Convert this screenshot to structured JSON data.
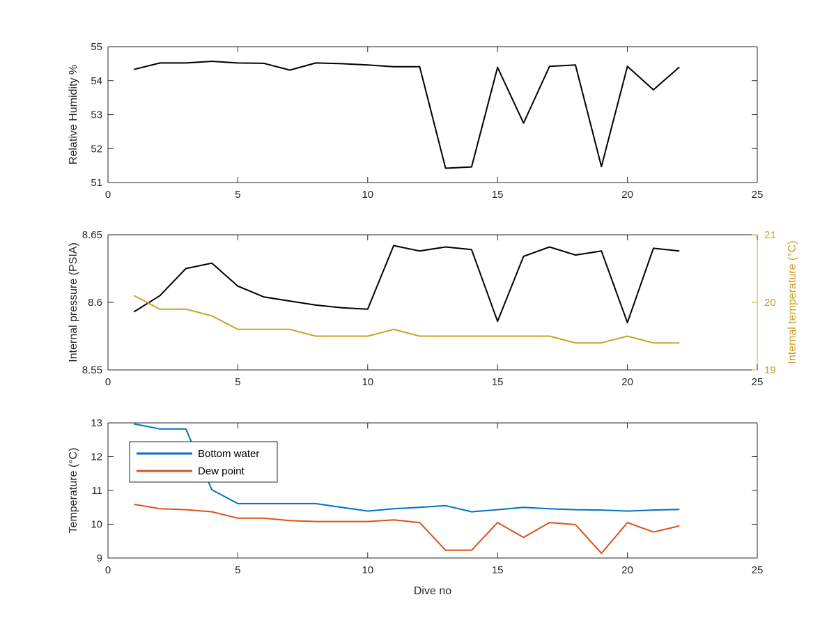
{
  "chart_data": [
    {
      "type": "line",
      "xlim": [
        0,
        25
      ],
      "ylim": [
        51,
        55
      ],
      "xticks": [
        0,
        5,
        10,
        15,
        20,
        25
      ],
      "yticks": [
        51,
        52,
        53,
        54,
        55
      ],
      "xlabel": "",
      "ylabel": "Relative Humidity %",
      "grid": false,
      "series": [
        {
          "color": "#000000",
          "x": [
            1,
            2,
            3,
            4,
            5,
            6,
            7,
            8,
            9,
            10,
            11,
            12,
            13,
            14,
            15,
            16,
            17,
            18,
            19,
            20,
            21,
            22
          ],
          "y": [
            54.33,
            54.52,
            54.52,
            54.57,
            54.52,
            54.51,
            54.31,
            54.52,
            54.5,
            54.46,
            54.41,
            54.41,
            51.42,
            51.46,
            54.39,
            52.75,
            54.42,
            54.46,
            51.47,
            54.42,
            53.73,
            54.4
          ]
        }
      ]
    },
    {
      "type": "line",
      "xlim": [
        0,
        25
      ],
      "ylim": [
        8.55,
        8.65
      ],
      "ylim_right": [
        19,
        21
      ],
      "xticks": [
        0,
        5,
        10,
        15,
        20,
        25
      ],
      "yticks": [
        8.55,
        8.6,
        8.65
      ],
      "yticks_right": [
        19,
        20,
        21
      ],
      "xlabel": "",
      "ylabel": "Internal pressure (PSIA)",
      "ylabel_right": "Internal temperature (°C)",
      "right_axis_color": "#C9A227",
      "grid": false,
      "series": [
        {
          "axis": "left",
          "color": "#000000",
          "x": [
            1,
            2,
            3,
            4,
            5,
            6,
            7,
            8,
            9,
            10,
            11,
            12,
            13,
            14,
            15,
            16,
            17,
            18,
            19,
            20,
            21,
            22
          ],
          "y": [
            8.593,
            8.605,
            8.625,
            8.629,
            8.612,
            8.604,
            8.601,
            8.598,
            8.596,
            8.595,
            8.642,
            8.638,
            8.641,
            8.639,
            8.586,
            8.634,
            8.641,
            8.635,
            8.638,
            8.585,
            8.64,
            8.638
          ]
        },
        {
          "axis": "right",
          "color": "#C9A227",
          "x": [
            1,
            2,
            3,
            4,
            5,
            6,
            7,
            8,
            9,
            10,
            11,
            12,
            13,
            14,
            15,
            16,
            17,
            18,
            19,
            20,
            21,
            22
          ],
          "y": [
            20.1,
            19.9,
            19.9,
            19.8,
            19.6,
            19.6,
            19.6,
            19.5,
            19.5,
            19.5,
            19.6,
            19.5,
            19.5,
            19.5,
            19.5,
            19.5,
            19.5,
            19.4,
            19.4,
            19.5,
            19.4,
            19.4
          ]
        }
      ]
    },
    {
      "type": "line",
      "xlim": [
        0,
        25
      ],
      "ylim": [
        9,
        13
      ],
      "xticks": [
        0,
        5,
        10,
        15,
        20,
        25
      ],
      "yticks": [
        9,
        10,
        11,
        12,
        13
      ],
      "xlabel": "Dive no",
      "ylabel": "Temperature (°C)",
      "grid": false,
      "legend_position": "top-left",
      "series": [
        {
          "name": "Bottom water",
          "color": "#0072BD",
          "x": [
            1,
            2,
            3,
            4,
            5,
            6,
            7,
            8,
            9,
            10,
            11,
            12,
            13,
            14,
            15,
            16,
            17,
            18,
            19,
            20,
            21,
            22
          ],
          "y": [
            12.97,
            12.82,
            12.82,
            11.02,
            10.61,
            10.61,
            10.61,
            10.61,
            10.5,
            10.39,
            10.46,
            10.5,
            10.55,
            10.37,
            10.43,
            10.5,
            10.46,
            10.43,
            10.42,
            10.39,
            10.42,
            10.44
          ]
        },
        {
          "name": "Dew point",
          "color": "#D95319",
          "x": [
            1,
            2,
            3,
            4,
            5,
            6,
            7,
            8,
            9,
            10,
            11,
            12,
            13,
            14,
            15,
            16,
            17,
            18,
            19,
            20,
            21,
            22
          ],
          "y": [
            10.59,
            10.46,
            10.43,
            10.37,
            10.18,
            10.18,
            10.11,
            10.08,
            10.08,
            10.08,
            10.13,
            10.05,
            9.23,
            9.23,
            10.05,
            9.61,
            10.05,
            9.99,
            9.14,
            10.05,
            9.77,
            9.95
          ]
        }
      ]
    }
  ]
}
